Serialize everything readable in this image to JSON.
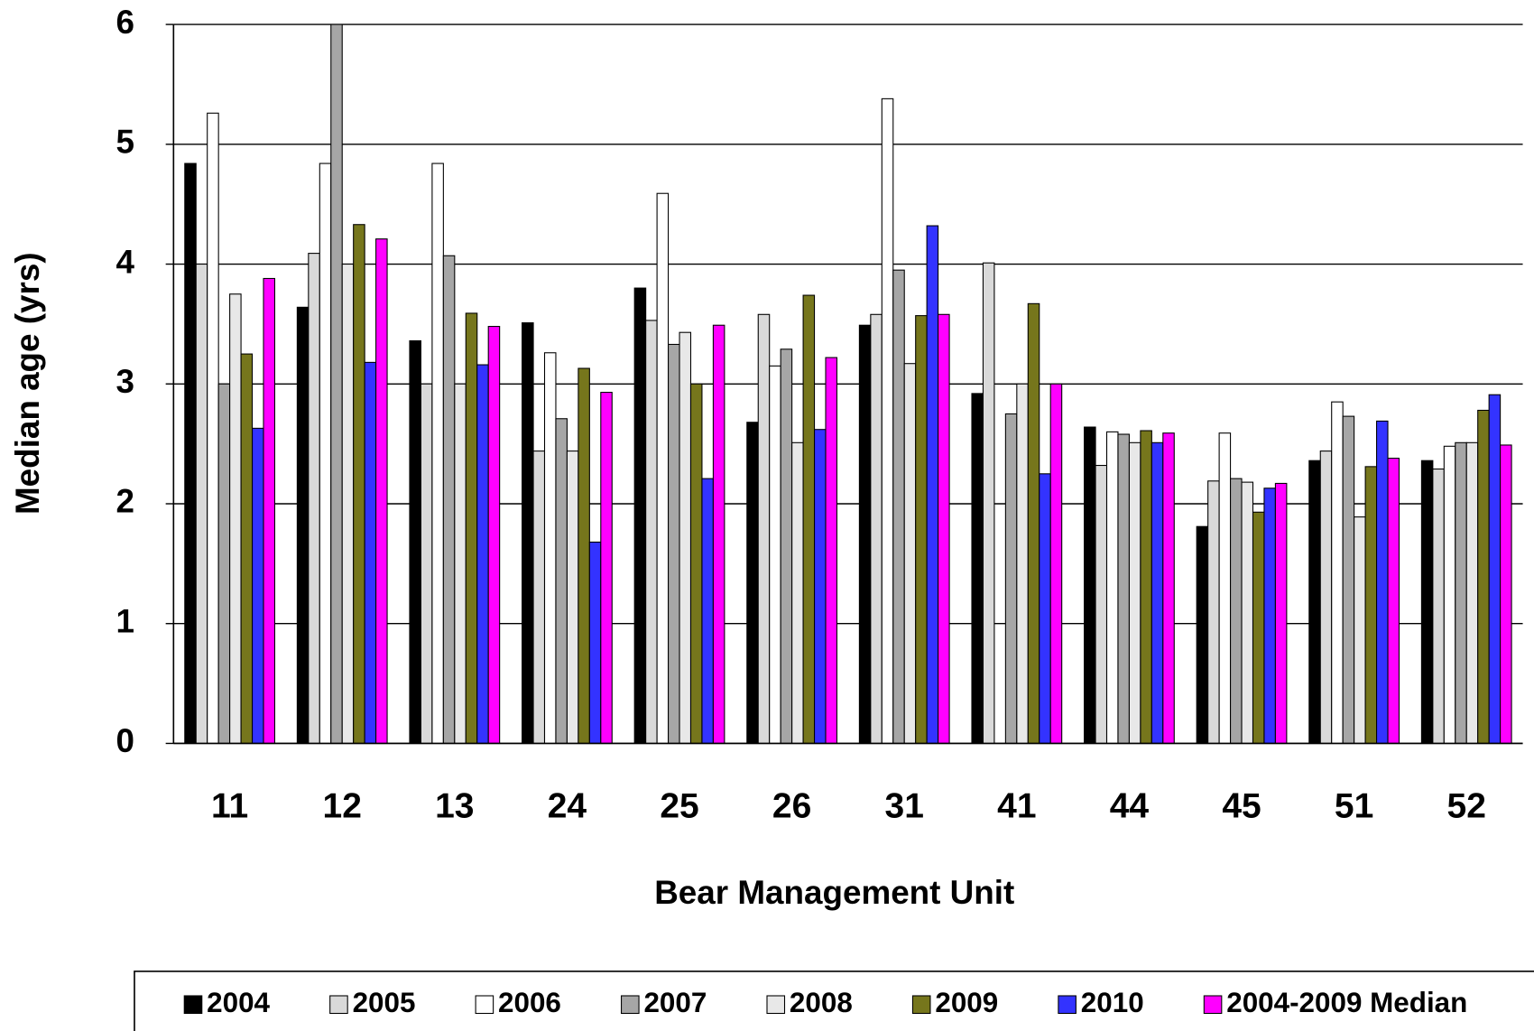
{
  "chart_data": {
    "type": "bar",
    "x_label": "Bear Management Unit",
    "y_label": "Median age (yrs)",
    "categories": [
      "11",
      "12",
      "13",
      "24",
      "25",
      "26",
      "31",
      "41",
      "44",
      "45",
      "51",
      "52"
    ],
    "series": [
      {
        "name": "2004",
        "color": "#000000",
        "values": [
          4.84,
          3.64,
          3.36,
          3.51,
          3.8,
          2.68,
          3.49,
          2.92,
          2.64,
          1.81,
          2.36,
          2.36
        ]
      },
      {
        "name": "2005",
        "color": "#d9d9d9",
        "values": [
          4.0,
          4.09,
          3.0,
          2.44,
          3.53,
          3.58,
          3.58,
          4.01,
          2.32,
          2.19,
          2.44,
          2.29
        ]
      },
      {
        "name": "2006",
        "color": "#ffffff",
        "values": [
          5.26,
          4.84,
          4.84,
          3.26,
          4.59,
          3.15,
          5.38,
          null,
          2.6,
          2.59,
          2.85,
          2.48
        ]
      },
      {
        "name": "2007",
        "color": "#a6a6a6",
        "values": [
          3.0,
          6.0,
          4.07,
          2.71,
          3.33,
          3.29,
          3.95,
          2.75,
          2.58,
          2.21,
          2.73,
          2.51
        ]
      },
      {
        "name": "2008",
        "color": "#e8e8e8",
        "values": [
          3.75,
          4.0,
          3.0,
          2.44,
          3.43,
          2.51,
          3.17,
          3.0,
          2.51,
          2.18,
          1.89,
          2.51
        ]
      },
      {
        "name": "2009",
        "color": "#76761c",
        "values": [
          3.25,
          4.33,
          3.59,
          3.13,
          3.0,
          3.74,
          3.57,
          3.67,
          2.61,
          1.93,
          2.31,
          2.78
        ]
      },
      {
        "name": "2010",
        "color": "#3333ff",
        "values": [
          2.63,
          3.18,
          3.16,
          1.68,
          2.21,
          2.62,
          4.32,
          2.25,
          2.51,
          2.13,
          2.69,
          2.91
        ]
      },
      {
        "name": "2004-2009 Median",
        "color": "#ff00ff",
        "values": [
          3.88,
          4.21,
          3.48,
          2.93,
          3.49,
          3.22,
          3.58,
          3.0,
          2.59,
          2.17,
          2.38,
          2.49
        ]
      }
    ],
    "ylim": [
      0,
      6
    ],
    "yticks": [
      0,
      1,
      2,
      3,
      4,
      5,
      6
    ],
    "grid": true,
    "legend": "bottom"
  }
}
